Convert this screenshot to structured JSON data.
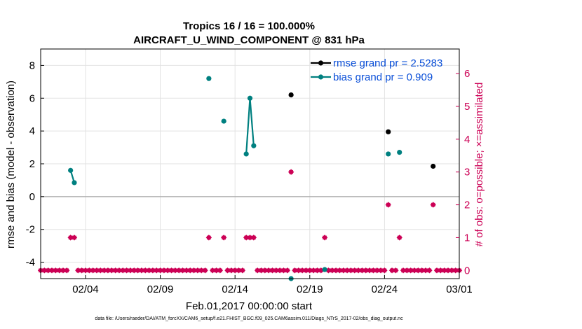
{
  "chart_data": {
    "type": "scatter",
    "title": "Tropics 16 / 16 = 100.000%",
    "subtitle": "AIRCRAFT_U_WIND_COMPONENT @ 831 hPa",
    "xlabel": "Feb.01,2017 00:00:00 start",
    "ylabel_left": "rmse and bias (model - observation)",
    "ylabel_right": "# of obs: o=possible; ×=assimilated",
    "footnote": "data file: /Users/raeder/DAI/ATM_forcXX/CAM6_setup/f.e21.FHIST_BGC.f09_025.CAM6assim.011/Diags_NTrS_2017-02/obs_diag_output.nc",
    "x_range_days": [
      0,
      28
    ],
    "y_left_range": [
      -5,
      9
    ],
    "y_right_range": [
      -0.25,
      6.75
    ],
    "x_ticks": [
      {
        "day": 3,
        "label": "02/04"
      },
      {
        "day": 8,
        "label": "02/09"
      },
      {
        "day": 13,
        "label": "02/14"
      },
      {
        "day": 18,
        "label": "02/19"
      },
      {
        "day": 23,
        "label": "02/24"
      },
      {
        "day": 28,
        "label": "03/01"
      }
    ],
    "y_left_ticks": [
      "-4",
      "-2",
      "0",
      "2",
      "4",
      "6",
      "8"
    ],
    "y_right_ticks": [
      "0",
      "1",
      "2",
      "3",
      "4",
      "5",
      "6"
    ],
    "colors": {
      "rmse": "#000000",
      "bias": "#008080",
      "obs": "#cc0055",
      "zero_line": "#b0b0b0",
      "legend_text": "#0a4fd8"
    },
    "series": [
      {
        "name": "rmse grand pr = 2.5283",
        "key": "rmse",
        "color": "#000000",
        "points": [
          [
            16.75,
            6.2
          ],
          [
            23.25,
            3.95
          ],
          [
            26.25,
            1.85
          ]
        ]
      },
      {
        "name": "bias grand pr = 0.909",
        "key": "bias",
        "color": "#008080",
        "points": [
          [
            2,
            1.6
          ],
          [
            2.25,
            0.85
          ],
          [
            11.25,
            7.2
          ],
          [
            12.25,
            4.6
          ],
          [
            13.75,
            2.6
          ],
          [
            14,
            6.0
          ],
          [
            14.25,
            3.1
          ],
          [
            16.75,
            -5.0
          ],
          [
            19,
            -4.45
          ],
          [
            23.25,
            2.6
          ],
          [
            24,
            2.7
          ]
        ]
      }
    ],
    "obs_possible": [
      [
        2,
        1
      ],
      [
        2.25,
        1
      ],
      [
        11.25,
        1
      ],
      [
        12.25,
        1
      ],
      [
        13.75,
        1
      ],
      [
        14,
        1
      ],
      [
        14.25,
        1
      ],
      [
        16.75,
        3
      ],
      [
        19,
        1
      ],
      [
        23.25,
        2
      ],
      [
        24,
        1
      ],
      [
        26.25,
        2
      ]
    ],
    "obs_assimilated": [
      [
        2,
        1
      ],
      [
        2.25,
        1
      ],
      [
        11.25,
        1
      ],
      [
        12.25,
        1
      ],
      [
        13.75,
        1
      ],
      [
        14,
        1
      ],
      [
        14.25,
        1
      ],
      [
        16.75,
        3
      ],
      [
        19,
        1
      ],
      [
        23.25,
        2
      ],
      [
        24,
        1
      ],
      [
        26.25,
        2
      ]
    ],
    "zero_count_step_days": 0.25,
    "legend_position": "top-right"
  }
}
